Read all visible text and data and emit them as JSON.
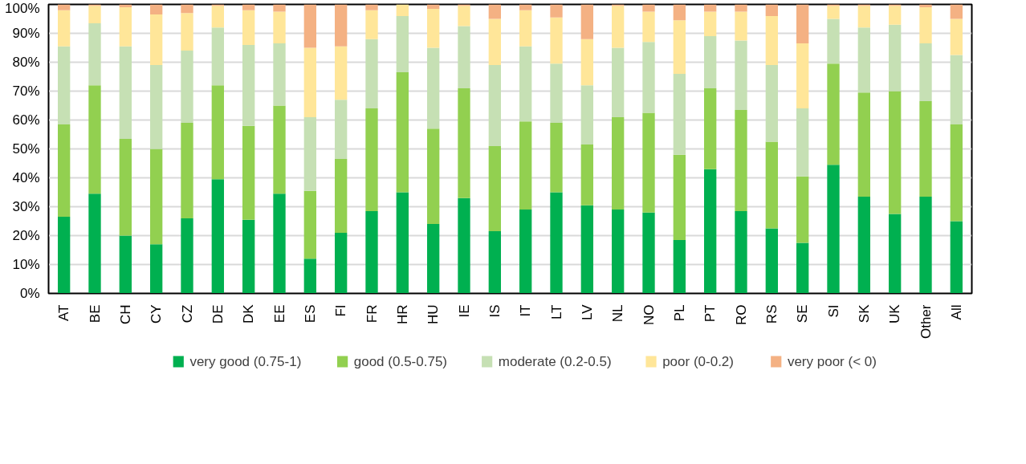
{
  "chart_data": {
    "type": "bar",
    "stacked": true,
    "categories": [
      "AT",
      "BE",
      "CH",
      "CY",
      "CZ",
      "DE",
      "DK",
      "EE",
      "ES",
      "FI",
      "FR",
      "HR",
      "HU",
      "IE",
      "IS",
      "IT",
      "LT",
      "LV",
      "NL",
      "NO",
      "PL",
      "PT",
      "RO",
      "RS",
      "SE",
      "SI",
      "SK",
      "UK",
      "Other",
      "All"
    ],
    "series": [
      {
        "name": "very good (0.75-1)",
        "color": "#00b050",
        "values": [
          26.5,
          34.5,
          20,
          17,
          26,
          39.5,
          25.5,
          34.5,
          12,
          21,
          28.5,
          35,
          24,
          33,
          21.5,
          29,
          35,
          30.5,
          29,
          28,
          18.5,
          43,
          28.5,
          22.5,
          17.5,
          44.5,
          33.5,
          27.5,
          33.5,
          25
        ]
      },
      {
        "name": "good (0.5-0.75)",
        "color": "#92d050",
        "values": [
          32,
          37.5,
          33.5,
          33,
          33,
          32.5,
          32.5,
          30.5,
          23.5,
          25.5,
          35.5,
          41.5,
          33,
          38,
          29.5,
          30.5,
          24,
          21,
          32,
          34.5,
          29.5,
          28,
          35,
          30,
          23,
          35,
          36,
          42.5,
          33,
          33.5
        ]
      },
      {
        "name": "moderate (0.2-0.5)",
        "color": "#c6e0b4",
        "values": [
          27,
          21.5,
          32,
          29,
          25,
          20,
          28,
          21.5,
          25.5,
          20.5,
          24,
          19.5,
          28,
          21.5,
          28,
          26,
          20.5,
          20.5,
          24,
          24.5,
          28,
          18,
          24,
          26.5,
          23.5,
          15.5,
          22.5,
          23,
          20,
          24
        ]
      },
      {
        "name": "poor (0-0.2)",
        "color": "#ffe699",
        "values": [
          12.5,
          6,
          13.5,
          17.5,
          13,
          7.5,
          12,
          11,
          24,
          18.5,
          10,
          4,
          13.5,
          7,
          16,
          12.5,
          16,
          16,
          14.5,
          10.5,
          18.5,
          8.5,
          10,
          17,
          22.5,
          4.5,
          7.5,
          6.5,
          12.5,
          12.5
        ]
      },
      {
        "name": "very poor (< 0)",
        "color": "#f4b183",
        "values": [
          2,
          0.5,
          1,
          3.5,
          3,
          0.5,
          2,
          2.5,
          15,
          14.5,
          2,
          0,
          1.5,
          0.5,
          5,
          2,
          4.5,
          12,
          0.5,
          2.5,
          5.5,
          2.5,
          2.5,
          4,
          13.5,
          0.5,
          0.5,
          0.5,
          1,
          5
        ]
      }
    ],
    "ylim": [
      0,
      100
    ],
    "yticks": [
      {
        "value": 0,
        "label": "0%"
      },
      {
        "value": 10,
        "label": "10%"
      },
      {
        "value": 20,
        "label": "20%"
      },
      {
        "value": 30,
        "label": "30%"
      },
      {
        "value": 40,
        "label": "40%"
      },
      {
        "value": 50,
        "label": "50%"
      },
      {
        "value": 60,
        "label": "60%"
      },
      {
        "value": 70,
        "label": "70%"
      },
      {
        "value": 80,
        "label": "80%"
      },
      {
        "value": 90,
        "label": "90%"
      },
      {
        "value": 100,
        "label": "100%"
      }
    ],
    "grid": "y",
    "legend": "bottom"
  }
}
